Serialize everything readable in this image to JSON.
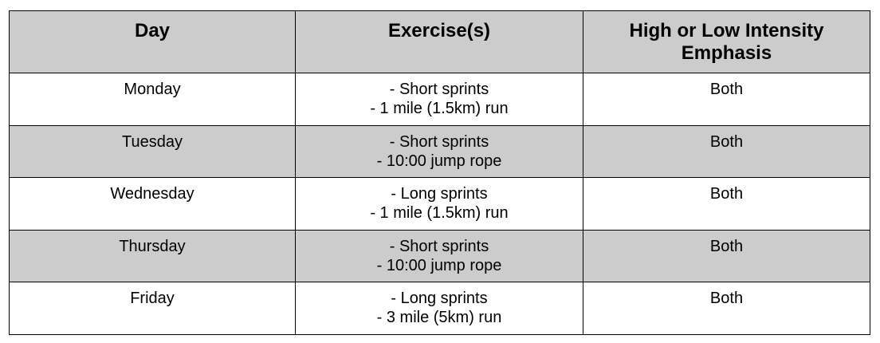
{
  "header": {
    "day": "Day",
    "exercises": "Exercise(s)",
    "intensity_line1": "High or Low Intensity",
    "intensity_line2": "Emphasis"
  },
  "rows": [
    {
      "day": "Monday",
      "exercise_1": "- Short sprints",
      "exercise_2": "- 1 mile (1.5km) run",
      "intensity": "Both"
    },
    {
      "day": "Tuesday",
      "exercise_1": "- Short sprints",
      "exercise_2": "- 10:00 jump rope",
      "intensity": "Both"
    },
    {
      "day": "Wednesday",
      "exercise_1": "- Long sprints",
      "exercise_2": "- 1 mile (1.5km) run",
      "intensity": "Both"
    },
    {
      "day": "Thursday",
      "exercise_1": "- Short sprints",
      "exercise_2": "- 10:00 jump rope",
      "intensity": "Both"
    },
    {
      "day": "Friday",
      "exercise_1": "- Long sprints",
      "exercise_2": "- 3 mile (5km) run",
      "intensity": "Both"
    }
  ],
  "colors": {
    "shaded_row": "#cccccc",
    "plain_row": "#ffffff",
    "border": "#000000"
  }
}
